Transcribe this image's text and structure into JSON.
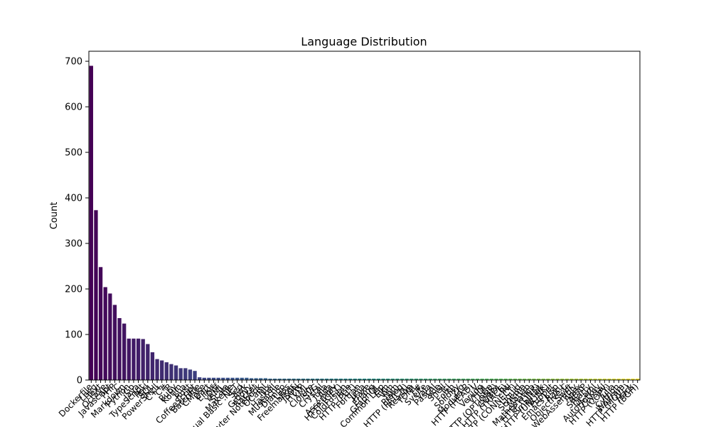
{
  "chart_data": {
    "type": "bar",
    "title": "Language Distribution",
    "xlabel": "",
    "ylabel": "Count",
    "ylim": [
      0,
      722
    ],
    "yticks": [
      0,
      100,
      200,
      300,
      400,
      500,
      600,
      700
    ],
    "grid": false,
    "legend": "none",
    "palette": "viridis",
    "categories": [
      "Dockerfile",
      "Lpeg",
      "Text",
      "Octave",
      "Javascript",
      "PHP",
      "C",
      "Markdown",
      "Python",
      "Go",
      "Java",
      "TypeScript",
      "Perl",
      "SQL",
      "PowerShell",
      "C++",
      "C#",
      "R",
      "Ruby",
      "Kotlin",
      "Lua",
      "Rust",
      "CoffeeScript",
      "Batchfile",
      "CMake",
      "Dart",
      "Elixir",
      "Diff",
      "YAML",
      "Scala",
      "Makefile",
      "Visual Basic .NET",
      "Sed",
      "Awk",
      "Groovy",
      "Racket",
      "Jupyter Notebook",
      "OCaml",
      "Nix",
      "Haskell",
      "Mustache",
      "Django",
      "Less",
      "Freemarker",
      "JSON",
      "HTTP",
      "XML",
      "Clojure",
      "SVG",
      "Crystal",
      "Julia",
      "Ada",
      "Assembly",
      "HTTP (GET)",
      "ColdFusion",
      "Fish",
      "HTTP (PUT)",
      "Fortran",
      "Jinja",
      "Haxe",
      "Erlang",
      "GraphQL",
      "Common Lisp",
      "Elm",
      "Vim",
      "Nim",
      "Prolog",
      "HTTP (PATCH)",
      "Reason",
      "TOML",
      "F#",
      "Svelte",
      "Vala",
      "Pascal",
      "Vue",
      "Shell",
      "Tcl",
      "Forth",
      "Solidity",
      "Zig",
      "Modula-2",
      "HTTP (HEAD)",
      "V",
      "Verilog",
      "VHDL",
      "Lisp",
      "HTTP (OPTIONS)",
      "COBOL",
      "HTTP (TRACE)",
      "INI",
      "HTTP (CONNECT)",
      "Liquid",
      "Scheme",
      "Matlab",
      "Mathematica",
      "HTTP (LINK)",
      "Smalltalk",
      "HTTP (UNLINK)",
      "Puppet",
      "Emacs Lisp",
      "Raku",
      "Objective-C",
      "Swift",
      "WebAssembly",
      "Apex",
      "ABAP",
      "Smarty",
      "OCaml",
      "AutoHotkey",
      "Crystal",
      "HTTP (COPY)",
      "Julia",
      "Cython",
      "Wolfram",
      "HTTP (MOVE)",
      "Hack",
      "HTTP (BGH)"
    ],
    "values": [
      690,
      373,
      248,
      204,
      190,
      165,
      136,
      124,
      91,
      91,
      91,
      90,
      79,
      61,
      46,
      43,
      39,
      35,
      32,
      26,
      26,
      23,
      20,
      6,
      5,
      5,
      5,
      5,
      5,
      5,
      5,
      5,
      5,
      5,
      4,
      4,
      4,
      4,
      3,
      3,
      3,
      3,
      3,
      3,
      3,
      3,
      3,
      3,
      3,
      3,
      3,
      3,
      3,
      3,
      3,
      3,
      3,
      3,
      3,
      3,
      3,
      3,
      3,
      3,
      3,
      3,
      3,
      3,
      3,
      3,
      3,
      3,
      3,
      3,
      3,
      3,
      3,
      3,
      3,
      3,
      3,
      3,
      3,
      3,
      3,
      3,
      3,
      3,
      3,
      3,
      3,
      3,
      3,
      3,
      3,
      3,
      3,
      3,
      3,
      3,
      3,
      3,
      3,
      3,
      3,
      3,
      3,
      3,
      3,
      3,
      3,
      3,
      3,
      3,
      3,
      3,
      3
    ]
  }
}
